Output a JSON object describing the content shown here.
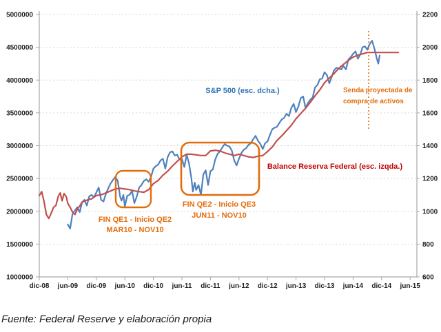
{
  "chart_data": {
    "type": "line",
    "title": "",
    "source_note": "Fuente: Federal Reserve y elaboración propia",
    "x_axis": {
      "tick_labels": [
        "dic-08",
        "jun-09",
        "dic-09",
        "jun-10",
        "dic-10",
        "jun-11",
        "dic-11",
        "jun-12",
        "dic-12",
        "jun-13",
        "dic-13",
        "jun-14",
        "dic-14",
        "jun-15"
      ],
      "months_per_tick": 6
    },
    "left_axis": {
      "tick_labels": [
        "1000000",
        "1500000",
        "2000000",
        "2500000",
        "3000000",
        "3500000",
        "4000000",
        "4500000",
        "5000000"
      ],
      "min": 1000000,
      "max": 5000000
    },
    "right_axis": {
      "tick_labels": [
        "600",
        "800",
        "1000",
        "1200",
        "1400",
        "1600",
        "1800",
        "2000",
        "2200"
      ],
      "min": 600,
      "max": 2200
    },
    "grid": "horizontal-dashed",
    "series": [
      {
        "id": "series-sp500",
        "name": "S&P 500 (esc. dcha.)",
        "axis": "right",
        "color": "#4F81BD",
        "x": [
          6,
          6.5,
          7,
          7.5,
          8,
          8.5,
          9,
          9.5,
          10,
          10.5,
          11,
          11.5,
          12,
          12.5,
          13,
          13.5,
          14,
          14.5,
          15,
          15.5,
          16,
          16.5,
          17,
          17.3,
          17.7,
          18,
          18.5,
          19,
          19.5,
          20,
          20.5,
          21,
          21.5,
          22,
          22.5,
          23,
          23.5,
          24,
          24.5,
          25,
          25.5,
          26,
          26.5,
          27,
          27.5,
          28,
          28.5,
          29,
          29.5,
          30,
          30.5,
          31,
          31.5,
          32,
          32.3,
          32.7,
          33,
          33.5,
          34,
          34.5,
          35,
          35.5,
          36,
          36.5,
          37,
          37.5,
          38,
          38.5,
          39,
          39.5,
          40,
          40.5,
          41,
          41.5,
          42,
          42.5,
          43,
          43.5,
          44,
          44.5,
          45,
          45.5,
          46,
          46.5,
          47,
          47.5,
          48,
          48.5,
          49,
          49.5,
          50,
          50.5,
          51,
          51.5,
          52,
          52.5,
          53,
          53.5,
          54,
          54.5,
          55,
          55.5,
          56,
          56.5,
          57,
          57.5,
          58,
          58.5,
          59,
          59.5,
          60,
          60.5,
          61,
          61.5,
          62,
          62.5,
          63,
          63.5,
          64,
          64.5,
          65,
          65.5,
          66,
          66.5,
          67,
          67.5,
          68,
          68.5,
          69,
          69.5,
          70,
          70.5,
          71,
          71.3,
          71.6
        ],
        "values": [
          920,
          895,
          985,
          1005,
          1025,
          995,
          1055,
          1070,
          1035,
          1090,
          1100,
          1085,
          1115,
          1145,
          1070,
          1060,
          1105,
          1140,
          1170,
          1190,
          1210,
          1185,
          1090,
          1065,
          1100,
          1030,
          1095,
          1100,
          1125,
          1050,
          1090,
          1145,
          1160,
          1185,
          1195,
          1180,
          1210,
          1260,
          1275,
          1285,
          1310,
          1320,
          1260,
          1330,
          1360,
          1365,
          1340,
          1345,
          1315,
          1320,
          1270,
          1345,
          1290,
          1200,
          1120,
          1175,
          1130,
          1160,
          1100,
          1225,
          1250,
          1160,
          1245,
          1255,
          1315,
          1350,
          1365,
          1390,
          1410,
          1400,
          1395,
          1370,
          1310,
          1280,
          1320,
          1355,
          1375,
          1385,
          1405,
          1415,
          1440,
          1460,
          1430,
          1410,
          1380,
          1415,
          1425,
          1465,
          1500,
          1510,
          1515,
          1540,
          1560,
          1570,
          1595,
          1580,
          1630,
          1655,
          1605,
          1640,
          1690,
          1700,
          1630,
          1660,
          1680,
          1695,
          1755,
          1770,
          1805,
          1810,
          1848,
          1830,
          1780,
          1820,
          1860,
          1875,
          1870,
          1865,
          1885,
          1865,
          1925,
          1940,
          1960,
          1975,
          1930,
          1955,
          2000,
          2005,
          1985,
          2020,
          2040,
          1990,
          1930,
          1900,
          1950
        ]
      },
      {
        "id": "series-fed",
        "name": "Balance Reserva Federal (esc. izqda.)",
        "axis": "left",
        "color": "#C0504D",
        "x": [
          0,
          0.5,
          1,
          1.5,
          2,
          2.5,
          3,
          3.5,
          4,
          4.4,
          4.8,
          5.2,
          5.7,
          6,
          6.5,
          7,
          7.5,
          8,
          8.5,
          9,
          10,
          11,
          12,
          13,
          14,
          15,
          16,
          17,
          18,
          19,
          20,
          21,
          22,
          23,
          24,
          25,
          26,
          27,
          28,
          29,
          30,
          31,
          32,
          33,
          34,
          35,
          36,
          37,
          38,
          39,
          40,
          41,
          42,
          43,
          44,
          45,
          46,
          47,
          48,
          49,
          50,
          51,
          52,
          53,
          54,
          55,
          56,
          57,
          58,
          59,
          60,
          61,
          62,
          63,
          64,
          65,
          66,
          67,
          68,
          69,
          70,
          72,
          74,
          75.5
        ],
        "values": [
          2240000,
          2300000,
          2150000,
          1950000,
          1890000,
          1970000,
          2060000,
          2090000,
          2230000,
          2280000,
          2160000,
          2270000,
          2220000,
          2120000,
          2060000,
          1990000,
          1950000,
          2030000,
          2080000,
          2140000,
          2170000,
          2190000,
          2240000,
          2250000,
          2280000,
          2310000,
          2340000,
          2350000,
          2340000,
          2330000,
          2310000,
          2300000,
          2290000,
          2330000,
          2420000,
          2470000,
          2550000,
          2610000,
          2690000,
          2760000,
          2830000,
          2870000,
          2870000,
          2860000,
          2850000,
          2850000,
          2920000,
          2930000,
          2920000,
          2890000,
          2870000,
          2850000,
          2870000,
          2850000,
          2830000,
          2820000,
          2840000,
          2850000,
          2910000,
          2980000,
          3080000,
          3150000,
          3230000,
          3310000,
          3410000,
          3490000,
          3570000,
          3660000,
          3760000,
          3850000,
          3960000,
          4030000,
          4100000,
          4180000,
          4240000,
          4300000,
          4350000,
          4380000,
          4400000,
          4420000,
          4420000,
          4420000,
          4420000,
          4420000
        ]
      }
    ],
    "annotations": {
      "sp500_series_label": "S&P 500 (esc. dcha.)",
      "fed_series_label": "Balance Reserva Federal (esc. izqda.)",
      "projection_note": [
        "Senda proyectada de",
        "compra de activos"
      ],
      "qe1": {
        "line1": "FIN QE1 - Inicio QE2",
        "line2": "MAR10 - NOV10"
      },
      "qe2": {
        "line1": "FIN QE2 - Inicio QE3",
        "line2": "JUN11 - NOV10"
      }
    },
    "colors": {
      "sp500_line": "#4F81BD",
      "fed_line": "#C0504D",
      "sp500_label_text": "#2E75B6",
      "fed_label_text": "#C00000",
      "annotation_orange": "#E36C0A",
      "gridline": "#D6D6D6",
      "axis": "#A6A6A6"
    }
  }
}
